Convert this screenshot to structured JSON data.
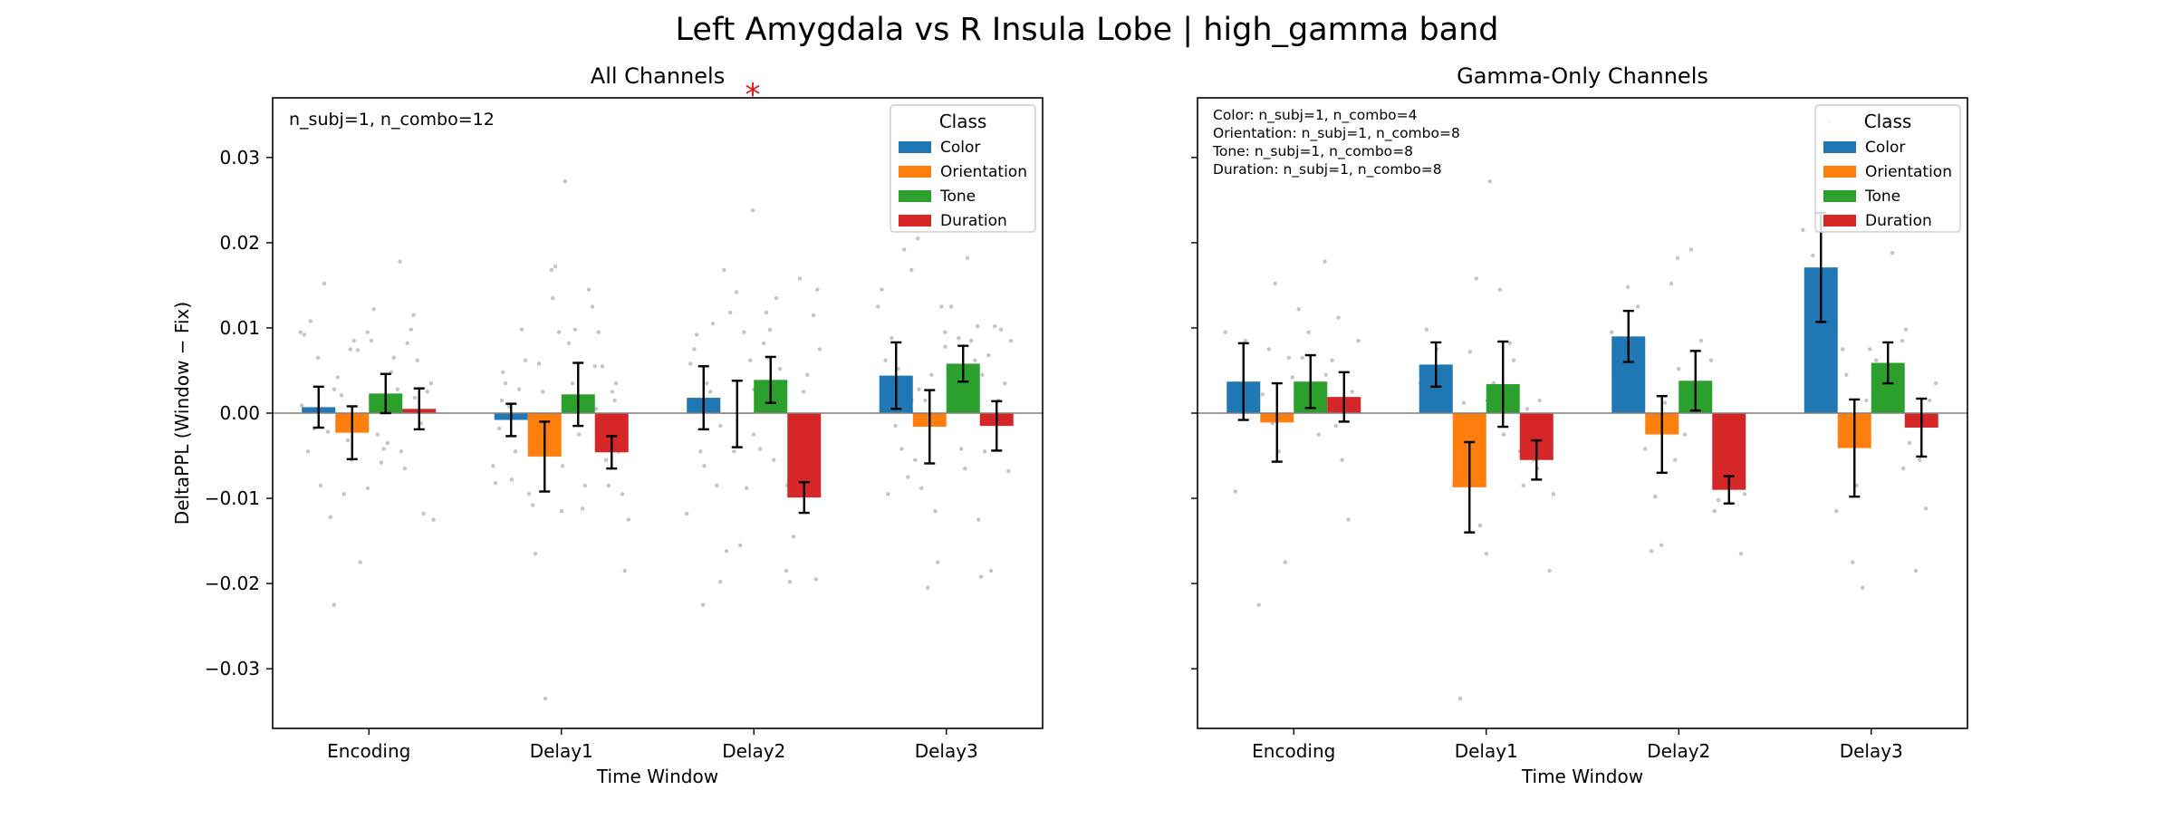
{
  "figure": {
    "suptitle": "Left Amygdala vs R Insula Lobe  |  high_gamma band"
  },
  "colors": {
    "Color": "#1f77b4",
    "Orientation": "#ff7f0e",
    "Tone": "#2ca02c",
    "Duration": "#d62728",
    "zero_line": "#808080",
    "scatter": "#b0b0b0",
    "significance": "#e8161b"
  },
  "chart_data": [
    {
      "type": "bar",
      "title": "All Channels",
      "significance_marker": "*",
      "annotation": [
        "n_subj=1, n_combo=12"
      ],
      "xlabel": "Time Window",
      "ylabel": "DeltaPPL (Window − Fix)",
      "ylim": [
        -0.037,
        0.037
      ],
      "yticks": [
        -0.03,
        -0.02,
        -0.01,
        0.0,
        0.01,
        0.02,
        0.03
      ],
      "ytick_labels": [
        "−0.03",
        "−0.02",
        "−0.01",
        "0.00",
        "0.01",
        "0.02",
        "0.03"
      ],
      "grid": false,
      "legend": {
        "title": "Class",
        "placement": "top-right"
      },
      "categories": [
        "Encoding",
        "Delay1",
        "Delay2",
        "Delay3"
      ],
      "series": [
        {
          "name": "Color",
          "values": [
            0.0007,
            -0.0008,
            0.0018,
            0.0044
          ],
          "err": [
            0.0024,
            0.0019,
            0.0037,
            0.0039
          ]
        },
        {
          "name": "Orientation",
          "values": [
            -0.0023,
            -0.0051,
            -0.0001,
            -0.0016
          ],
          "err": [
            0.0031,
            0.0041,
            0.0039,
            0.0043
          ]
        },
        {
          "name": "Tone",
          "values": [
            0.0023,
            0.0022,
            0.0039,
            0.0058
          ],
          "err": [
            0.0023,
            0.0037,
            0.0027,
            0.0021
          ]
        },
        {
          "name": "Duration",
          "values": [
            0.0005,
            -0.0046,
            -0.0099,
            -0.0015
          ],
          "err": [
            0.0024,
            0.0019,
            0.0018,
            0.0029
          ]
        }
      ],
      "scatter": [
        [
          [
            0.0095,
            0.0108,
            -0.0085,
            -0.0122,
            0.0092,
            -0.0018,
            0.0152,
            0.0028,
            -0.0045,
            0.0065,
            -0.0022,
            0.0009
          ],
          [
            0.0075,
            -0.0175,
            -0.0225,
            -0.0095,
            0.0085,
            -0.0015,
            0.0042,
            -0.0032,
            0.0074,
            -0.0088,
            0.0021,
            -0.0055
          ],
          [
            0.0178,
            0.0122,
            -0.0042,
            0.0065,
            0.0095,
            -0.0025,
            -0.0035,
            0.0028,
            0.0085,
            -0.0058,
            0.0048,
            0.0002
          ],
          [
            0.0115,
            -0.0118,
            -0.0125,
            0.0082,
            0.0062,
            0.0025,
            -0.0045,
            0.0098,
            -0.0012,
            0.0035,
            -0.0065,
            0.0018
          ]
        ],
        [
          [
            0.0015,
            -0.0078,
            0.0098,
            -0.0082,
            0.0035,
            -0.0045,
            0.0062,
            -0.0018,
            0.0008,
            0.0028,
            -0.0062,
            0.0048
          ],
          [
            0.0168,
            -0.0115,
            -0.0165,
            -0.0335,
            0.0172,
            -0.0095,
            0.0058,
            -0.0035,
            0.0095,
            -0.0108,
            0.0025,
            0.0135
          ],
          [
            0.0272,
            0.0098,
            -0.0085,
            0.0055,
            0.0082,
            -0.0025,
            0.0145,
            -0.0062,
            0.0035,
            -0.0112,
            0.0125,
            0.0012
          ],
          [
            0.0015,
            -0.0185,
            0.0095,
            -0.0085,
            -0.0045,
            -0.0125,
            0.0055,
            0.0025,
            -0.0095,
            0.0005,
            -0.0055,
            0.0035
          ]
        ],
        [
          [
            -0.0225,
            0.0105,
            -0.0118,
            0.0092,
            0.0035,
            -0.0085,
            0.0058,
            -0.0045,
            0.0025,
            -0.0015,
            0.0075,
            -0.0062
          ],
          [
            0.0238,
            -0.0162,
            0.0142,
            -0.0088,
            -0.0198,
            0.0118,
            -0.0155,
            0.0062,
            0.0168,
            -0.0045,
            0.0095,
            0.0028
          ],
          [
            0.0118,
            0.0135,
            -0.0185,
            -0.0042,
            0.0098,
            0.0052,
            -0.0025,
            0.0082,
            -0.0055,
            0.0035,
            0.0018,
            0.0065
          ],
          [
            -0.0195,
            -0.0198,
            0.0158,
            -0.0065,
            0.0075,
            -0.0145,
            0.0025,
            0.0115,
            -0.0085,
            -0.0035,
            0.0045,
            0.0145
          ]
        ],
        [
          [
            0.0192,
            0.0125,
            -0.0095,
            0.0052,
            -0.0075,
            0.0145,
            0.0088,
            -0.0042,
            0.0015,
            0.0062,
            -0.0015,
            0.0035
          ],
          [
            0.0205,
            -0.0205,
            -0.0175,
            0.0168,
            -0.0088,
            0.0045,
            0.0125,
            -0.0055,
            0.0015,
            -0.0115,
            0.0078,
            0.0028
          ],
          [
            0.0182,
            0.0102,
            0.0125,
            -0.0042,
            0.0085,
            0.0095,
            0.0035,
            -0.0065,
            0.0062,
            0.0028,
            0.0088,
            0.0045
          ],
          [
            -0.0192,
            -0.0185,
            0.0098,
            0.0085,
            -0.0045,
            0.0102,
            0.0035,
            -0.0125,
            0.0068,
            0.0015,
            -0.0068,
            0.0045
          ]
        ]
      ]
    },
    {
      "type": "bar",
      "title": "Gamma-Only Channels",
      "significance_marker": "",
      "annotation": [
        "Color: n_subj=1, n_combo=4",
        "Orientation: n_subj=1, n_combo=8",
        "Tone: n_subj=1, n_combo=8",
        "Duration: n_subj=1, n_combo=8"
      ],
      "xlabel": "Time Window",
      "ylabel": "",
      "ylim": [
        -0.037,
        0.037
      ],
      "yticks": [
        -0.03,
        -0.02,
        -0.01,
        0.0,
        0.01,
        0.02,
        0.03
      ],
      "ytick_labels": [
        "",
        "",
        "",
        "",
        "",
        "",
        ""
      ],
      "grid": false,
      "legend": {
        "title": "Class",
        "placement": "top-right"
      },
      "categories": [
        "Encoding",
        "Delay1",
        "Delay2",
        "Delay3"
      ],
      "series": [
        {
          "name": "Color",
          "values": [
            0.0037,
            0.0057,
            0.009,
            0.0171
          ],
          "err": [
            0.0045,
            0.0026,
            0.003,
            0.0064
          ]
        },
        {
          "name": "Orientation",
          "values": [
            -0.0011,
            -0.0087,
            -0.0025,
            -0.0041
          ],
          "err": [
            0.0046,
            0.0053,
            0.0045,
            0.0057
          ]
        },
        {
          "name": "Tone",
          "values": [
            0.0037,
            0.0034,
            0.0038,
            0.0059
          ],
          "err": [
            0.0031,
            0.005,
            0.0035,
            0.0024
          ]
        },
        {
          "name": "Duration",
          "values": [
            0.0019,
            -0.0055,
            -0.009,
            -0.0017
          ],
          "err": [
            0.0029,
            0.0023,
            0.0016,
            0.0034
          ]
        }
      ],
      "scatter": [
        [
          [
            0.0095,
            -0.0092,
            0.0085,
            0.0035
          ],
          [
            0.0152,
            -0.0175,
            -0.0225,
            0.0075,
            -0.0045,
            0.0065,
            0.0022,
            -0.0012
          ],
          [
            0.0178,
            0.0122,
            0.0095,
            -0.0025,
            0.0042,
            0.0065,
            0.0015,
            0.0028
          ],
          [
            0.0112,
            -0.0125,
            0.0085,
            0.0062,
            -0.0055,
            0.0025,
            0.0045,
            -0.0015
          ]
        ],
        [
          [
            0.0098,
            0.0075,
            0.0055,
            0.0035
          ],
          [
            0.0158,
            -0.0165,
            -0.0335,
            0.0072,
            -0.0132,
            -0.0085,
            0.0012,
            -0.0045
          ],
          [
            0.0272,
            0.0145,
            0.0082,
            -0.0045,
            0.0035,
            -0.0025,
            0.0062,
            0.0015
          ],
          [
            0.0015,
            -0.0185,
            -0.0085,
            -0.0055,
            -0.0035,
            -0.0095,
            0.0005,
            -0.0065
          ]
        ],
        [
          [
            0.0148,
            0.0125,
            0.0095,
            0.0068
          ],
          [
            0.0182,
            -0.0162,
            -0.0155,
            0.0152,
            -0.0042,
            -0.0098,
            0.0012,
            -0.0055
          ],
          [
            0.0192,
            0.0085,
            0.0062,
            -0.0025,
            0.0035,
            0.0015,
            0.0052,
            0.0028
          ],
          [
            -0.0165,
            -0.0115,
            -0.0085,
            -0.0058,
            -0.0095,
            -0.0102,
            -0.0045,
            -0.0075
          ]
        ],
        [
          [
            0.0342,
            0.0215,
            0.0185,
            0.0125
          ],
          [
            0.0075,
            -0.0175,
            -0.0205,
            -0.0115,
            0.0045,
            -0.0085,
            0.0015,
            -0.0035
          ],
          [
            0.0188,
            0.0085,
            0.0062,
            0.0045,
            0.0035,
            0.0075,
            0.0028,
            0.0055
          ],
          [
            0.0098,
            -0.0185,
            -0.0112,
            0.0035,
            -0.0035,
            -0.0055,
            0.0015,
            -0.0065
          ]
        ]
      ]
    }
  ]
}
